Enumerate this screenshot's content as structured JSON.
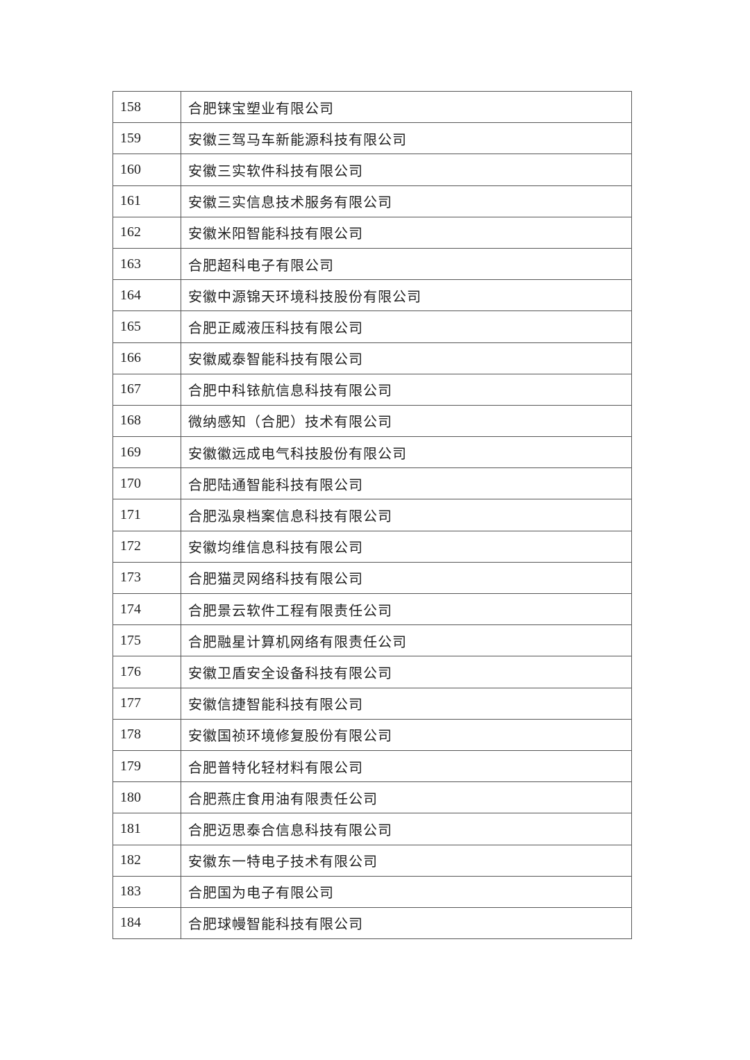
{
  "table": {
    "rows": [
      {
        "no": "158",
        "name": "合肥铼宝塑业有限公司"
      },
      {
        "no": "159",
        "name": "安徽三驾马车新能源科技有限公司"
      },
      {
        "no": "160",
        "name": "安徽三实软件科技有限公司"
      },
      {
        "no": "161",
        "name": "安徽三实信息技术服务有限公司"
      },
      {
        "no": "162",
        "name": "安徽米阳智能科技有限公司"
      },
      {
        "no": "163",
        "name": "合肥超科电子有限公司"
      },
      {
        "no": "164",
        "name": "安徽中源锦天环境科技股份有限公司"
      },
      {
        "no": "165",
        "name": "合肥正威液压科技有限公司"
      },
      {
        "no": "166",
        "name": "安徽威泰智能科技有限公司"
      },
      {
        "no": "167",
        "name": "合肥中科铱航信息科技有限公司"
      },
      {
        "no": "168",
        "name": "微纳感知（合肥）技术有限公司"
      },
      {
        "no": "169",
        "name": "安徽徽远成电气科技股份有限公司"
      },
      {
        "no": "170",
        "name": "合肥陆通智能科技有限公司"
      },
      {
        "no": "171",
        "name": "合肥泓泉档案信息科技有限公司"
      },
      {
        "no": "172",
        "name": "安徽均维信息科技有限公司"
      },
      {
        "no": "173",
        "name": "合肥猫灵网络科技有限公司"
      },
      {
        "no": "174",
        "name": "合肥景云软件工程有限责任公司"
      },
      {
        "no": "175",
        "name": "合肥融星计算机网络有限责任公司"
      },
      {
        "no": "176",
        "name": "安徽卫盾安全设备科技有限公司"
      },
      {
        "no": "177",
        "name": "安徽信捷智能科技有限公司"
      },
      {
        "no": "178",
        "name": "安徽国祯环境修复股份有限公司"
      },
      {
        "no": "179",
        "name": "合肥普特化轻材料有限公司"
      },
      {
        "no": "180",
        "name": "合肥燕庄食用油有限责任公司"
      },
      {
        "no": "181",
        "name": "合肥迈思泰合信息科技有限公司"
      },
      {
        "no": "182",
        "name": "安徽东一特电子技术有限公司"
      },
      {
        "no": "183",
        "name": "合肥国为电子有限公司"
      },
      {
        "no": "184",
        "name": "合肥球幔智能科技有限公司"
      }
    ]
  }
}
